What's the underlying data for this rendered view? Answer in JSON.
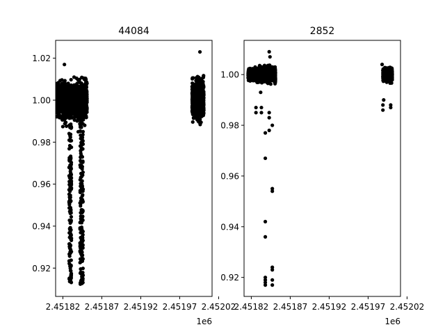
{
  "chart_data": [
    {
      "type": "scatter",
      "title": "44084",
      "xlabel": "",
      "ylabel": "",
      "x_offset_text": "1e6",
      "x_unit_scale": 1000000,
      "xlim": [
        2451810.7,
        2452011.6
      ],
      "ylim": [
        0.9065,
        1.0285
      ],
      "x_ticks": [
        2451820,
        2451870,
        2451920,
        2451970,
        2452020
      ],
      "x_tick_labels": [
        "2.45182",
        "2.45187",
        "2.45192",
        "2.45197",
        "2.45202"
      ],
      "y_ticks": [
        0.92,
        0.94,
        0.96,
        0.98,
        1.0,
        1.02
      ],
      "y_tick_labels": [
        "0.92",
        "0.94",
        "0.96",
        "0.98",
        "1.00",
        "1.02"
      ],
      "marker_color": "#000000",
      "clusters": [
        {
          "x_range": [
            2451812,
            2451832
          ],
          "y_center": 1.0,
          "y_spread": [
            0.984,
            1.01
          ],
          "dips": [
            {
              "x_range": [
                2451828,
                2451831
              ],
              "y_min": 0.913
            }
          ]
        },
        {
          "x_range": [
            2451834,
            2451851
          ],
          "y_center": 1.0,
          "y_spread": [
            0.984,
            1.012
          ],
          "dips": [
            {
              "x_range": [
                2451842,
                2451846
              ],
              "y_min": 0.912
            }
          ]
        },
        {
          "x_range": [
            2451986,
            2452001
          ],
          "y_center": 1.0,
          "y_spread": [
            0.982,
            1.012
          ],
          "dips": []
        }
      ],
      "outliers": [
        {
          "x": 2451822,
          "y": 1.017
        },
        {
          "x": 2451996,
          "y": 1.023
        }
      ]
    },
    {
      "type": "scatter",
      "title": "2852",
      "xlabel": "",
      "ylabel": "",
      "x_offset_text": "1e6",
      "x_unit_scale": 1000000,
      "xlim": [
        2451810.7,
        2452011.6
      ],
      "ylim": [
        0.9125,
        1.0135
      ],
      "x_ticks": [
        2451820,
        2451870,
        2451920,
        2451970,
        2452020
      ],
      "x_tick_labels": [
        "2.45182",
        "2.45187",
        "2.45192",
        "2.45197",
        "2.45202"
      ],
      "y_ticks": [
        0.92,
        0.94,
        0.96,
        0.98,
        1.0
      ],
      "y_tick_labels": [
        "0.92",
        "0.94",
        "0.96",
        "0.98",
        "1.00"
      ],
      "marker_color": "#000000",
      "clusters": [
        {
          "x_range": [
            2451816,
            2451830
          ],
          "y_center": 1.0,
          "y_spread": [
            0.996,
            1.003
          ],
          "dips": []
        },
        {
          "x_range": [
            2451830,
            2451851
          ],
          "y_center": 1.0,
          "y_spread": [
            0.995,
            1.004
          ],
          "dips": []
        },
        {
          "x_range": [
            2451989,
            2452001
          ],
          "y_center": 1.0,
          "y_spread": [
            0.995,
            1.003
          ],
          "dips": []
        }
      ],
      "outliers": [
        {
          "x": 2451826,
          "y": 0.987
        },
        {
          "x": 2451826,
          "y": 0.985
        },
        {
          "x": 2451832,
          "y": 0.993
        },
        {
          "x": 2451833,
          "y": 0.987
        },
        {
          "x": 2451833,
          "y": 0.985
        },
        {
          "x": 2451838,
          "y": 0.977
        },
        {
          "x": 2451838,
          "y": 0.967
        },
        {
          "x": 2451838,
          "y": 0.942
        },
        {
          "x": 2451838,
          "y": 0.936
        },
        {
          "x": 2451838,
          "y": 0.92
        },
        {
          "x": 2451838,
          "y": 0.919
        },
        {
          "x": 2451838,
          "y": 0.918
        },
        {
          "x": 2451838,
          "y": 0.917
        },
        {
          "x": 2451843,
          "y": 0.985
        },
        {
          "x": 2451843,
          "y": 0.983
        },
        {
          "x": 2451843,
          "y": 0.978
        },
        {
          "x": 2451843,
          "y": 1.009
        },
        {
          "x": 2451844,
          "y": 1.007
        },
        {
          "x": 2451847,
          "y": 0.98
        },
        {
          "x": 2451847,
          "y": 0.955
        },
        {
          "x": 2451847,
          "y": 0.954
        },
        {
          "x": 2451847,
          "y": 0.924
        },
        {
          "x": 2451847,
          "y": 0.923
        },
        {
          "x": 2451847,
          "y": 0.919
        },
        {
          "x": 2451847,
          "y": 0.917
        },
        {
          "x": 2451989,
          "y": 0.986
        },
        {
          "x": 2451989,
          "y": 0.988
        },
        {
          "x": 2451990,
          "y": 0.99
        },
        {
          "x": 2451999,
          "y": 0.988
        },
        {
          "x": 2451999,
          "y": 0.987
        },
        {
          "x": 2451988,
          "y": 1.004
        }
      ]
    }
  ]
}
